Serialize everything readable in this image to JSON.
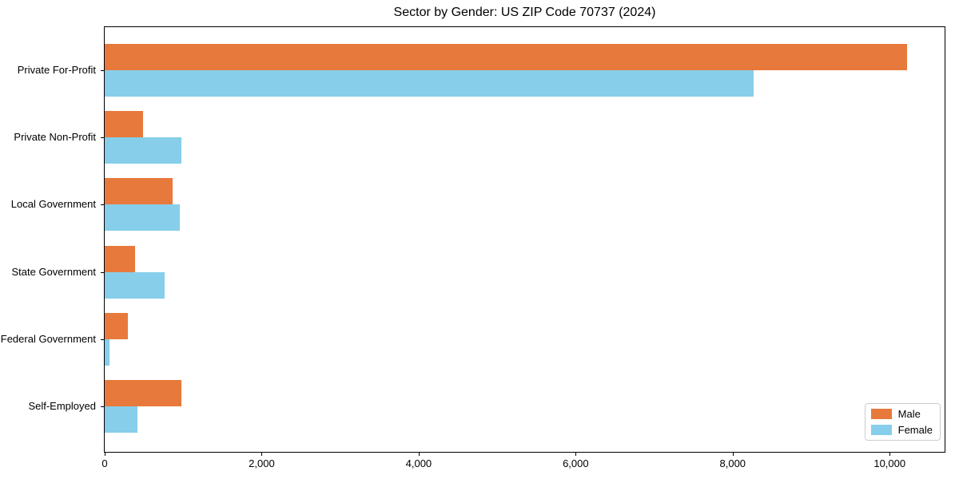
{
  "chart_data": {
    "type": "bar",
    "orientation": "horizontal",
    "title": "Sector by Gender: US ZIP Code 70737 (2024)",
    "categories": [
      "Private For-Profit",
      "Private Non-Profit",
      "Local Government",
      "State Government",
      "Federal Government",
      "Self-Employed"
    ],
    "series": [
      {
        "name": "Male",
        "color": "#e8793c",
        "values": [
          10220,
          490,
          865,
          385,
          300,
          975
        ]
      },
      {
        "name": "Female",
        "color": "#87ceeb",
        "values": [
          8265,
          975,
          955,
          760,
          65,
          415
        ]
      }
    ],
    "xlabel": "",
    "ylabel": "",
    "xlim": [
      0,
      10700
    ],
    "x_ticks": [
      0,
      2000,
      4000,
      6000,
      8000,
      10000
    ],
    "x_tick_labels": [
      "0",
      "2,000",
      "4,000",
      "6,000",
      "8,000",
      "10,000"
    ],
    "grid": false,
    "legend": {
      "position": "lower right",
      "entries": [
        "Male",
        "Female"
      ]
    }
  }
}
